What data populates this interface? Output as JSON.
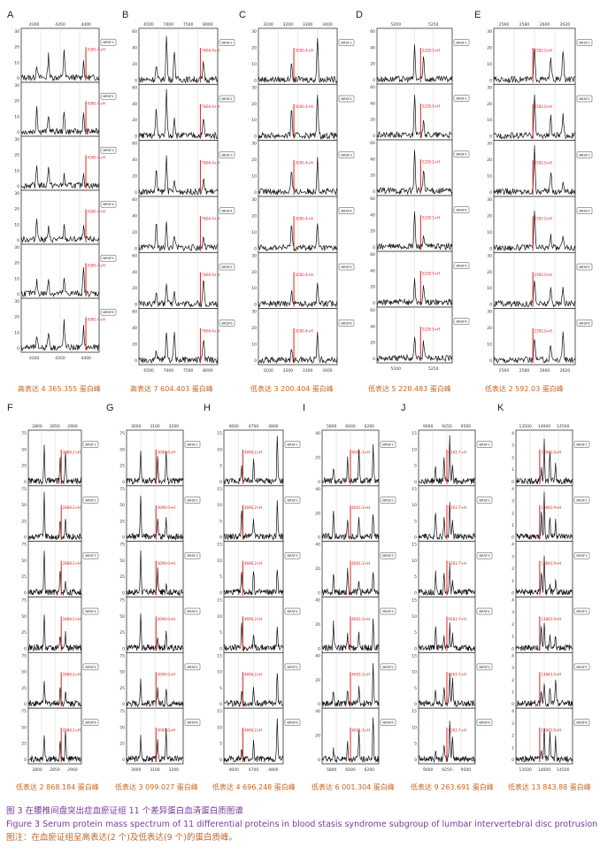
{
  "panels": [
    {
      "id": "A",
      "caption": "高表达 4 365.355 蛋白峰",
      "ticks_top": [
        "4300",
        "4350",
        "4400"
      ],
      "ticks_bottom": [
        "4300",
        "4350",
        "4400"
      ],
      "yticks": [
        "30",
        "20",
        "10",
        "0"
      ],
      "peak_label": "4365.4+H",
      "sample_labels": [
        "BRSF1",
        "BRSF2",
        "BRSF3",
        "BRSF4",
        "BRSF5",
        "BRSF6"
      ]
    },
    {
      "id": "B",
      "caption": "高表达 7 604.403 蛋白峰",
      "ticks_top": [
        "6500",
        "7000",
        "7500",
        "8000"
      ],
      "ticks_bottom": [
        "6500",
        "7000",
        "7500",
        "8000"
      ],
      "yticks": [
        "60",
        "40",
        "20",
        "0"
      ],
      "peak_label": "7604.4+H",
      "sample_labels": [
        "BRSF1",
        "BRSF2",
        "BRSF3",
        "BRSF4",
        "BRSF5",
        "BRSF6"
      ]
    },
    {
      "id": "C",
      "caption": "低表达 3 200.404 蛋白峰",
      "ticks_top": [
        "3100",
        "3200",
        "3300",
        "3400"
      ],
      "ticks_bottom": [
        "3100",
        "3200",
        "3300",
        "3400"
      ],
      "yticks": [
        "30",
        "20",
        "10",
        "0"
      ],
      "peak_label": "3200.4+H",
      "sample_labels": [
        "BRSF1",
        "BRSF2",
        "BRSF3",
        "BRSF4",
        "BRSF5",
        "BRSF6"
      ]
    },
    {
      "id": "D",
      "caption": "低表达 5 228.483 蛋白峰",
      "ticks_top": [
        "5200",
        "5250"
      ],
      "ticks_bottom": [
        "5200",
        "5250"
      ],
      "yticks": [
        "60",
        "40",
        "20",
        "0"
      ],
      "peak_label": "5228.5+H",
      "sample_labels": [
        "BRSF1",
        "BRSF2",
        "BRSF3",
        "BRSF4",
        "BRSF5",
        "BRSF6"
      ]
    },
    {
      "id": "E",
      "caption": "低表达 2 592.03 蛋白峰",
      "ticks_top": [
        "2560",
        "2580",
        "2600",
        "2620"
      ],
      "ticks_bottom": [
        "2560",
        "2580",
        "2600",
        "2620"
      ],
      "yticks": [
        "30",
        "20",
        "10",
        "0"
      ],
      "peak_label": "2592.0+H",
      "sample_labels": [
        "BRSF1",
        "BRSF2",
        "BRSF3",
        "BRSF4",
        "BRSF5",
        "BRSF6"
      ]
    },
    {
      "id": "F",
      "caption": "低表达 2 868.184 蛋白峰",
      "ticks_top": [
        "2800",
        "2850",
        "2900"
      ],
      "ticks_bottom": [
        "2800",
        "2850",
        "2900"
      ],
      "yticks": [
        "75",
        "50",
        "25",
        "0"
      ],
      "peak_label": "2868.2+H",
      "sample_labels": [
        "BRSF1",
        "BRSF2",
        "BRSF3",
        "BRSF4",
        "BRSF5",
        "BRSF6"
      ]
    },
    {
      "id": "G",
      "caption": "低表达 3 099.027 蛋白峰",
      "ticks_top": [
        "3000",
        "3100",
        "3200"
      ],
      "ticks_bottom": [
        "3000",
        "3100",
        "3200"
      ],
      "yticks": [
        "75",
        "50",
        "25",
        "0"
      ],
      "peak_label": "3099.0+H",
      "sample_labels": [
        "BRSF1",
        "BRSF2",
        "BRSF3",
        "BRSF4",
        "BRSF5",
        "BRSF6"
      ]
    },
    {
      "id": "H",
      "caption": "低表达 4 696.248 蛋白峰",
      "ticks_top": [
        "4600",
        "4700",
        "4800"
      ],
      "ticks_bottom": [
        "4600",
        "4700",
        "4800"
      ],
      "yticks": [
        "15",
        "10",
        "5",
        "0"
      ],
      "peak_label": "4696.2+H",
      "sample_labels": [
        "BRSF1",
        "BRSF2",
        "BRSF3",
        "BRSF4",
        "BRSF5",
        "BRSF6"
      ]
    },
    {
      "id": "I",
      "caption": "低表达 6 001.304 蛋白峰",
      "ticks_top": [
        "5800",
        "6000",
        "6200"
      ],
      "ticks_bottom": [
        "5800",
        "6000",
        "6200"
      ],
      "yticks": [
        "40",
        "20",
        "0"
      ],
      "peak_label": "6001.3+H",
      "sample_labels": [
        "BRSF1",
        "BRSF2",
        "BRSF3",
        "BRSF4",
        "BRSF5",
        "BRSF6"
      ]
    },
    {
      "id": "J",
      "caption": "低表达 9 263.691 蛋白峰",
      "ticks_top": [
        "9000",
        "9250",
        "9500"
      ],
      "ticks_bottom": [
        "9000",
        "9250",
        "9500"
      ],
      "yticks": [
        "15",
        "10",
        "5",
        "0"
      ],
      "peak_label": "9263.7+H",
      "sample_labels": [
        "BRSF1",
        "BRSF2",
        "BRSF3",
        "BRSF4",
        "BRSF5",
        "BRSF6"
      ]
    },
    {
      "id": "K",
      "caption": "低表达 13 843.88 蛋白峰",
      "ticks_top": [
        "13500",
        "14000",
        "14500"
      ],
      "ticks_bottom": [
        "13500",
        "14000",
        "14500"
      ],
      "yticks": [
        "4",
        "3",
        "2",
        "1",
        "0"
      ],
      "peak_label": "13843.9+H",
      "sample_labels": [
        "BRSF1",
        "BRSF2",
        "BRSF3",
        "BRSF4",
        "BRSF5",
        "BRSF6"
      ]
    }
  ],
  "caption": {
    "cn": "图 3   在腰椎间盘突出症血瘀证组 11 个差异蛋白血清蛋白质图谱",
    "en": "Figure 3   Serum protein mass spectrum of 11 differential proteins in blood stasis syndrome subgroup of lumbar intervertebral disc protrusion",
    "note": "图注：在血瘀证组呈高表达(2 个)及低表达(9 个)的蛋白质峰。"
  },
  "colors": {
    "trace": "#111111",
    "marker": "#e02020",
    "caption_orange": "#c8641e",
    "caption_purple": "#7a3aa0"
  }
}
